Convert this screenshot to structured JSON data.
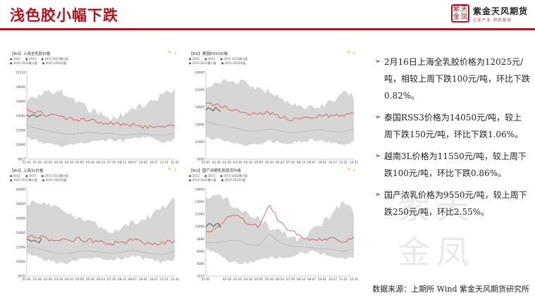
{
  "page": {
    "title": "浅色胶小幅下跌",
    "logo": {
      "seal_chars": [
        "紫",
        "天",
        "金",
        "凤"
      ],
      "name": "紫金天风期货",
      "slogan": "立足产业 研究驱动"
    },
    "source": "数据来源：上期所 Wind 紫金天风期货研究所"
  },
  "colors": {
    "accent": "#b5121b",
    "series_2022": "#d33a3a",
    "series_2023": "#333333",
    "series_range": "#d6d6d6",
    "series_mean": "#888888"
  },
  "icons": [
    "bullet-arrow-icon",
    "refresh-icon",
    "download-icon",
    "zoom-icon"
  ],
  "charts": [
    {
      "id": "sh-whole-milk",
      "header": "【RU】上海全乳胶价格",
      "tools": "↻ ⤓",
      "legend1": [
        "● 2022",
        "● 2023",
        "● 2015-2022最大值"
      ],
      "legend2": [
        "● 2015-2022最小值",
        "● 2015-2022均值"
      ],
      "x_ticks": [
        "01-01",
        "01-26",
        "02-20",
        "03-16",
        "04-10",
        "05-05",
        "05-30",
        "06-24",
        "07-19",
        "08-13",
        "09-07",
        "10-02",
        "10-27",
        "11-21",
        "12-31"
      ],
      "y_ticks": [
        "21110",
        "18000",
        "16000",
        "14000",
        "12000",
        "10000",
        "8617"
      ]
    },
    {
      "id": "thai-rss3",
      "header": "【RU】泰国RSS3价格",
      "tools": "↻ ⤓",
      "legend1": [
        "● 2022",
        "● 2023",
        "● 2015-2022最大值"
      ],
      "legend2": [
        "● 2015-2022最小值",
        "● 2015-2022均值"
      ],
      "x_ticks": [
        "01-01",
        "01-26",
        "02-20",
        "03-16",
        "04-10",
        "05-05",
        "05-30",
        "06-24",
        "07-19",
        "08-13",
        "09-07",
        "10-02",
        "10-27",
        "11-21",
        "12-31"
      ],
      "y_ticks": [
        "24000",
        "21000",
        "18000",
        "15000",
        "12000",
        "9000"
      ]
    },
    {
      "id": "vn-3l",
      "header": "【RU】上海3L价格",
      "tools": "↻ ⤓",
      "legend1": [
        "● 2022",
        "● 2023",
        "● 2015-2022最大值"
      ],
      "legend2": [
        "● 2015-2022最小值",
        "● 2015-2022均值"
      ],
      "x_ticks": [
        "01-01",
        "01-26",
        "02-20",
        "03-16",
        "04-10",
        "05-05",
        "05-30",
        "06-24",
        "07-19",
        "08-13",
        "09-07",
        "10-02",
        "10-27",
        "11-21",
        "12-31"
      ],
      "y_ticks": [
        "20000",
        "18000",
        "16000",
        "14000",
        "12000",
        "10000",
        "9250"
      ]
    },
    {
      "id": "cn-concentrated",
      "header": "【RU】国产浓缩乳胶现货价格",
      "tools": "↻ ⤓",
      "legend1": [
        "● 2022",
        "● 2023",
        "● 2015-2022最大值"
      ],
      "legend2": [
        "● 2015-2022最小值",
        "● 2015-2022均值"
      ],
      "x_ticks": [
        "01-01",
        "",
        "02-16",
        "03-16",
        "04-10",
        "05-05",
        "05-30",
        "06-24",
        "07-19",
        "08-13",
        "09-07",
        "10-02",
        "10-27",
        "11-21",
        "12-31"
      ],
      "y_ticks": [
        "14850",
        "14000",
        "12000",
        "10000",
        "9480",
        "8000",
        "6000",
        "5237"
      ]
    }
  ],
  "bullets": [
    "2月16日上海全乳胶价格为12025元/吨，相较上周下跌100元/吨，环比下跌0.82%。",
    "泰国RSS3价格为14050元/吨，较上周下跌150元/吨，环比下跌1.06%。",
    "越南3L价格为11550元/吨，较上周下跌100元/吨，环比下跌0.86%。",
    "国产浓乳价格为9550元/吨，较上周下跌250元/吨，环比2.55%。"
  ]
}
